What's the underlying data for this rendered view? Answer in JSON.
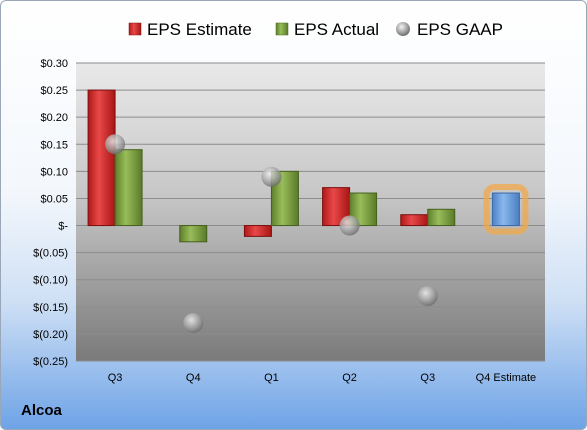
{
  "company": "Alcoa",
  "colors": {
    "estimate": "#d42a2a",
    "actual": "#7ea13f",
    "gaap": "#a9b0b8",
    "forecast": "#6aa0dd",
    "forecast_glow": "#f2a84a"
  },
  "chart_data": {
    "type": "bar",
    "categories": [
      "Q3",
      "Q4",
      "Q1",
      "Q2",
      "Q3",
      "Q4 Estimate"
    ],
    "ylim": [
      -0.25,
      0.3
    ],
    "yticks": [
      0.3,
      0.25,
      0.2,
      0.15,
      0.1,
      0.05,
      0,
      -0.05,
      -0.1,
      -0.15,
      -0.2,
      -0.25
    ],
    "ytick_labels": [
      "$0.30",
      "$0.25",
      "$0.20",
      "$0.15",
      "$0.10",
      "$0.05",
      "$-",
      "$(0.05)",
      "$(0.10)",
      "$(0.15)",
      "$(0.20)",
      "$(0.25)"
    ],
    "grid": true,
    "legend_position": "top",
    "series": [
      {
        "name": "EPS Estimate",
        "kind": "bar",
        "values": [
          0.25,
          null,
          -0.02,
          0.07,
          0.02,
          null
        ]
      },
      {
        "name": "EPS Actual",
        "kind": "bar",
        "values": [
          0.14,
          -0.03,
          0.1,
          0.06,
          0.03,
          null
        ]
      },
      {
        "name": "EPS GAAP",
        "kind": "marker",
        "values": [
          0.15,
          -0.18,
          0.09,
          0.0,
          -0.13,
          null
        ]
      },
      {
        "name": "",
        "kind": "forecast-bar",
        "values": [
          null,
          null,
          null,
          null,
          null,
          0.06
        ]
      }
    ]
  }
}
